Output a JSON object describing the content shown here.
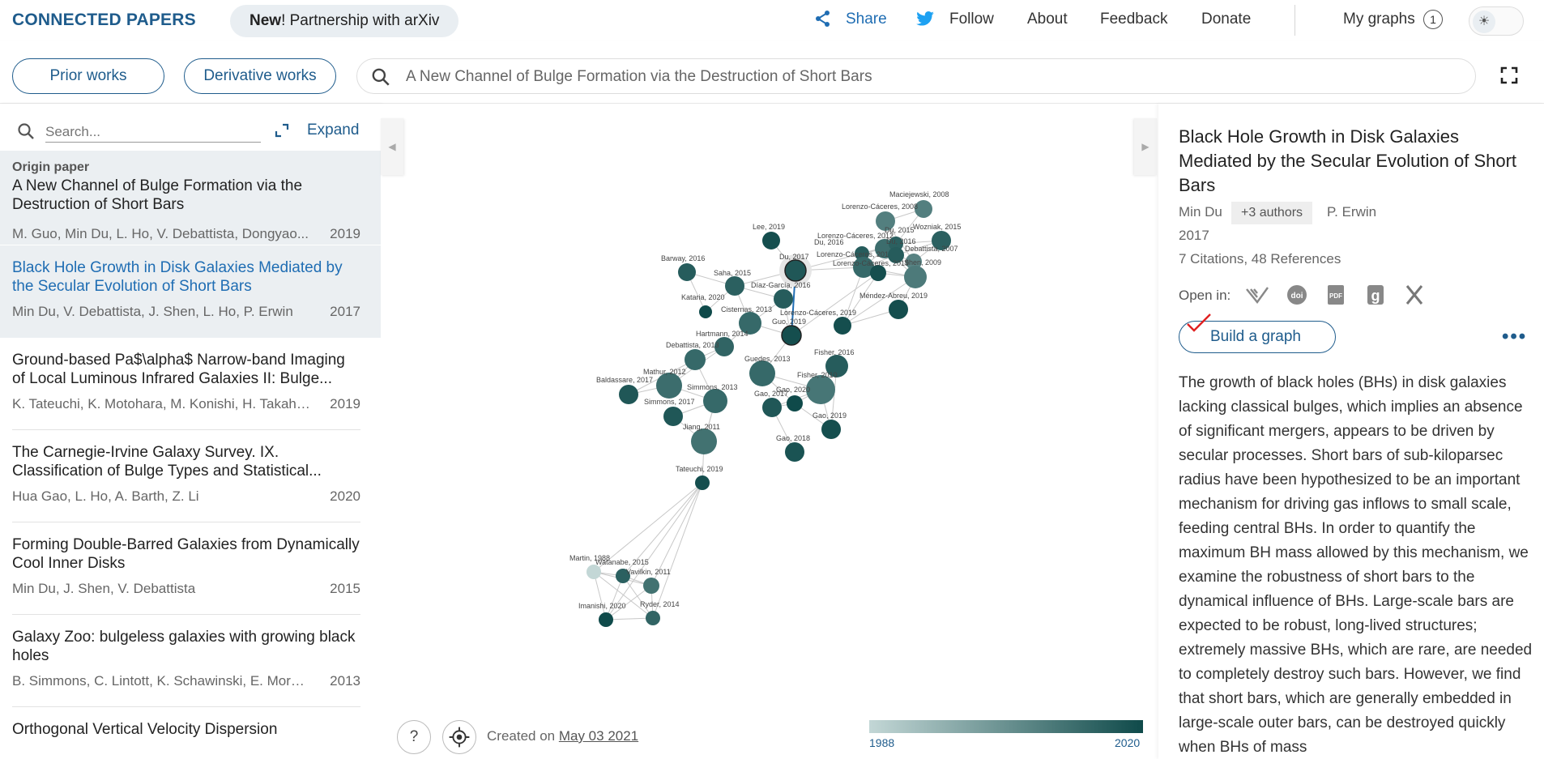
{
  "header": {
    "logo": "CONNECTED PAPERS",
    "announce_bold": "New",
    "announce_rest": "! Partnership with arXiv",
    "share": "Share",
    "follow": "Follow",
    "about": "About",
    "feedback": "Feedback",
    "donate": "Donate",
    "my_graphs": "My graphs",
    "my_graphs_count": "1"
  },
  "toolbar": {
    "prior_works": "Prior works",
    "derivative_works": "Derivative works",
    "search_value": "A New Channel of Bulge Formation via the Destruction of Short Bars"
  },
  "left_panel": {
    "search_placeholder": "Search...",
    "expand_label": "Expand",
    "origin_label": "Origin paper",
    "papers": [
      {
        "title": "A New Channel of Bulge Formation via the Destruction of Short Bars",
        "authors": "M. Guo, Min Du, L. Ho, V. Debattista, Dongyao...",
        "year": "2019"
      },
      {
        "title": "Black Hole Growth in Disk Galaxies Mediated by the Secular Evolution of Short Bars",
        "authors": "Min Du, V. Debattista, J. Shen, L. Ho, P. Erwin",
        "year": "2017"
      },
      {
        "title": "Ground-based Pa$\\alpha$ Narrow-band Imaging of Local Luminous Infrared Galaxies II: Bulge...",
        "authors": "K. Tateuchi, K. Motohara, M. Konishi, H. Takahas...",
        "year": "2019"
      },
      {
        "title": "The Carnegie-Irvine Galaxy Survey. IX. Classification of Bulge Types and Statistical...",
        "authors": "Hua Gao, L. Ho, A. Barth, Z. Li",
        "year": "2020"
      },
      {
        "title": "Forming Double-Barred Galaxies from Dynamically Cool Inner Disks",
        "authors": "Min Du, J. Shen, V. Debattista",
        "year": "2015"
      },
      {
        "title": "Galaxy Zoo: bulgeless galaxies with growing black holes",
        "authors": "B. Simmons, C. Lintott, K. Schawinski, E. Moran, ...",
        "year": "2013"
      },
      {
        "title": "Orthogonal Vertical Velocity Dispersion",
        "authors": "",
        "year": ""
      }
    ]
  },
  "graph": {
    "created_prefix": "Created on ",
    "created_date": "May 03 2021",
    "year_min": "1988",
    "year_max": "2020",
    "color_light": "#c3d7d6",
    "color_dark": "#0f4a4a",
    "nodes": [
      {
        "label": "Maciejewski, 2008",
        "year": 2008
      },
      {
        "label": "Lorenzo-Cáceres, 2008",
        "year": 2008
      },
      {
        "label": "Wozniak, 2015",
        "year": 2015
      },
      {
        "label": "Lee, 2019",
        "year": 2019
      },
      {
        "label": "Lorenzo-Cáceres, 2012",
        "year": 2012
      },
      {
        "label": "Du, 2015",
        "year": 2015
      },
      {
        "label": "Du, 2016",
        "year": 2016
      },
      {
        "label": "Lorenzo-Cáceres, 2013",
        "year": 2013
      },
      {
        "label": "Du, 2016",
        "year": 2016
      },
      {
        "label": "Debattista, 2007",
        "year": 2007
      },
      {
        "label": "Barway, 2016",
        "year": 2016
      },
      {
        "label": "Du, 2017",
        "year": 2017
      },
      {
        "label": "Saha, 2015",
        "year": 2015
      },
      {
        "label": "Lorenzo-Cáceres, 2019",
        "year": 2019
      },
      {
        "label": "Shen, 2009",
        "year": 2009
      },
      {
        "label": "Díaz-García, 2016",
        "year": 2016
      },
      {
        "label": "Méndez-Abreu, 2019",
        "year": 2019
      },
      {
        "label": "Kataria, 2020",
        "year": 2020
      },
      {
        "label": "Cisternas, 2013",
        "year": 2013
      },
      {
        "label": "Lorenzo-Cáceres, 2019",
        "year": 2019
      },
      {
        "label": "Guo, 2019",
        "year": 2019
      },
      {
        "label": "Hartmann, 2014",
        "year": 2014
      },
      {
        "label": "Debattista, 2013",
        "year": 2013
      },
      {
        "label": "Guedes, 2013",
        "year": 2013
      },
      {
        "label": "Fisher, 2016",
        "year": 2016
      },
      {
        "label": "Mathur, 2012",
        "year": 2012
      },
      {
        "label": "Fisher, 2010",
        "year": 2010
      },
      {
        "label": "Baldassare, 2017",
        "year": 2017
      },
      {
        "label": "Simmons, 2013",
        "year": 2013
      },
      {
        "label": "Gao, 2020",
        "year": 2020
      },
      {
        "label": "Gao, 2017",
        "year": 2017
      },
      {
        "label": "Simmons, 2017",
        "year": 2017
      },
      {
        "label": "Gao, 2019",
        "year": 2019
      },
      {
        "label": "Jiang, 2011",
        "year": 2011
      },
      {
        "label": "Gao, 2018",
        "year": 2018
      },
      {
        "label": "Tateuchi, 2019",
        "year": 2019
      },
      {
        "label": "Martin, 1988",
        "year": 1988
      },
      {
        "label": "Watanabe, 2015",
        "year": 2015
      },
      {
        "label": "Vavilkin, 2011",
        "year": 2011
      },
      {
        "label": "Imanishi, 2020",
        "year": 2020
      },
      {
        "label": "Ryder, 2014",
        "year": 2014
      }
    ]
  },
  "detail": {
    "title": "Black Hole Growth in Disk Galaxies Mediated by the Secular Evolution of Short Bars",
    "author_first": "Min Du",
    "more_authors": "+3 authors",
    "author_last": "P. Erwin",
    "year": "2017",
    "citations": "7 Citations, 48 References",
    "open_in": "Open in:",
    "open_icons": [
      "semantic-scholar-icon",
      "doi-icon",
      "pdf-icon",
      "google-scholar-icon",
      "x-icon"
    ],
    "build_graph": "Build a graph",
    "abstract": "The growth of black holes (BHs) in disk galaxies lacking classical bulges, which implies an absence of significant mergers, appears to be driven by secular processes. Short bars of sub-kiloparsec radius have been hypothesized to be an important mechanism for driving gas inflows to small scale, feeding central BHs. In order to quantify the maximum BH mass allowed by this mechanism, we examine the robustness of short bars to the dynamical influence of BHs. Large-scale bars are expected to be robust, long-lived structures; extremely massive BHs, which are rare, are needed to completely destroy such bars. However, we find that short bars, which are generally embedded in large-scale outer bars, can be destroyed quickly when BHs of mass"
  }
}
